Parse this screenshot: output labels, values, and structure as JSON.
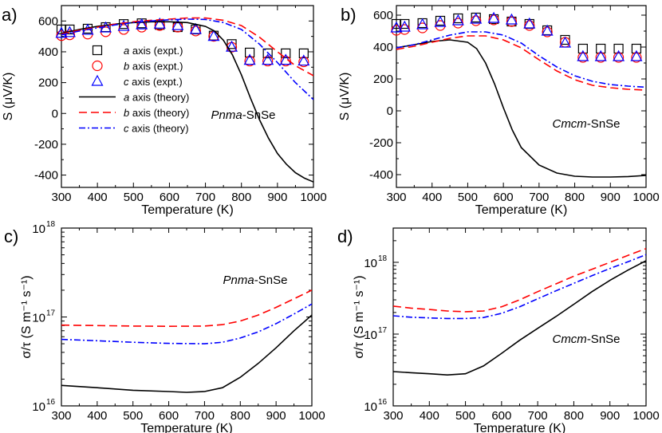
{
  "chart_data": [
    {
      "id": "a",
      "panel_label": "a)",
      "type": "line",
      "title": "",
      "xlabel": "Temperature (K)",
      "ylabel": "S (μV/K)",
      "xlim": [
        300,
        1000
      ],
      "ylim": [
        -480,
        700
      ],
      "xticks": [
        300,
        400,
        500,
        600,
        700,
        800,
        900,
        1000
      ],
      "yticks": [
        -400,
        -200,
        0,
        200,
        400,
        600
      ],
      "annotation": {
        "italic": "Pnma",
        "rest": "-SnSe"
      },
      "legend_position": "center-left",
      "series": [
        {
          "name": "a axis (expt.)",
          "axis": "a",
          "suffix": " axis (expt.)",
          "kind": "marker",
          "marker": "square",
          "color": "#000000",
          "x": [
            300,
            323,
            373,
            423,
            473,
            523,
            573,
            623,
            673,
            723,
            773,
            823,
            873,
            923,
            973
          ],
          "y": [
            545,
            545,
            550,
            560,
            580,
            585,
            575,
            560,
            545,
            505,
            450,
            395,
            390,
            390,
            390
          ]
        },
        {
          "name": "b axis (expt.)",
          "axis": "b",
          "suffix": " axis (expt.)",
          "kind": "marker",
          "marker": "circle",
          "color": "#ff0000",
          "x": [
            300,
            323,
            373,
            423,
            473,
            523,
            573,
            623,
            673,
            723,
            773,
            823,
            873,
            923,
            973
          ],
          "y": [
            505,
            510,
            515,
            530,
            545,
            560,
            570,
            560,
            535,
            500,
            430,
            340,
            340,
            340,
            335
          ]
        },
        {
          "name": "c axis (expt.)",
          "axis": "c",
          "suffix": " axis (expt.)",
          "kind": "marker",
          "marker": "triangle",
          "color": "#0000ff",
          "x": [
            300,
            323,
            373,
            423,
            473,
            523,
            573,
            623,
            673,
            723,
            773,
            823,
            873,
            923,
            973
          ],
          "y": [
            520,
            525,
            540,
            555,
            565,
            575,
            580,
            570,
            545,
            500,
            430,
            345,
            345,
            345,
            340
          ]
        },
        {
          "name": "a axis (theory)",
          "axis": "a",
          "suffix": " axis (theory)",
          "kind": "line",
          "dash": "solid",
          "color": "#000000",
          "x": [
            300,
            350,
            400,
            450,
            500,
            550,
            600,
            650,
            700,
            725,
            750,
            775,
            800,
            825,
            850,
            875,
            900,
            925,
            950,
            975,
            1000
          ],
          "y": [
            520,
            545,
            565,
            580,
            590,
            595,
            595,
            590,
            565,
            535,
            475,
            380,
            250,
            100,
            -40,
            -160,
            -260,
            -330,
            -385,
            -420,
            -445
          ]
        },
        {
          "name": "b axis (theory)",
          "axis": "b",
          "suffix": " axis (theory)",
          "kind": "line",
          "dash": "dashed",
          "color": "#ff0000",
          "x": [
            300,
            350,
            400,
            450,
            500,
            550,
            600,
            650,
            700,
            750,
            800,
            850,
            900,
            950,
            1000
          ],
          "y": [
            515,
            540,
            560,
            580,
            595,
            605,
            612,
            620,
            620,
            605,
            570,
            495,
            400,
            310,
            245
          ]
        },
        {
          "name": "c axis (theory)",
          "axis": "c",
          "suffix": " axis (theory)",
          "kind": "line",
          "dash": "dashdot",
          "color": "#0000ff",
          "x": [
            300,
            350,
            400,
            450,
            500,
            550,
            600,
            650,
            700,
            750,
            800,
            850,
            900,
            950,
            1000
          ],
          "y": [
            510,
            535,
            555,
            575,
            590,
            600,
            608,
            612,
            610,
            590,
            545,
            450,
            330,
            200,
            90
          ]
        }
      ]
    },
    {
      "id": "b",
      "panel_label": "b)",
      "type": "line",
      "title": "",
      "xlabel": "Temperature (K)",
      "ylabel": "S (μV/K)",
      "xlim": [
        300,
        1000
      ],
      "ylim": [
        -480,
        660
      ],
      "xticks": [
        300,
        400,
        500,
        600,
        700,
        800,
        900,
        1000
      ],
      "yticks": [
        -400,
        -200,
        0,
        200,
        400,
        600
      ],
      "annotation": {
        "italic": "Cmcm",
        "rest": "-SnSe"
      },
      "series": [
        {
          "name": "a axis (expt.)",
          "kind": "marker",
          "marker": "square",
          "color": "#000000",
          "x": [
            300,
            323,
            373,
            423,
            473,
            523,
            573,
            623,
            673,
            723,
            773,
            823,
            873,
            923,
            973
          ],
          "y": [
            545,
            545,
            550,
            565,
            580,
            585,
            575,
            560,
            545,
            505,
            445,
            390,
            390,
            390,
            390
          ]
        },
        {
          "name": "b axis (expt.)",
          "kind": "marker",
          "marker": "circle",
          "color": "#ff0000",
          "x": [
            300,
            323,
            373,
            423,
            473,
            523,
            573,
            623,
            673,
            723,
            773,
            823,
            873,
            923,
            973
          ],
          "y": [
            505,
            510,
            520,
            535,
            550,
            565,
            570,
            560,
            535,
            495,
            430,
            335,
            335,
            335,
            335
          ]
        },
        {
          "name": "c axis (expt.)",
          "kind": "marker",
          "marker": "triangle",
          "color": "#0000ff",
          "x": [
            300,
            323,
            373,
            423,
            473,
            523,
            573,
            623,
            673,
            723,
            773,
            823,
            873,
            923,
            973
          ],
          "y": [
            520,
            525,
            540,
            555,
            565,
            575,
            580,
            570,
            545,
            500,
            425,
            340,
            340,
            340,
            340
          ]
        },
        {
          "name": "a axis (theory)",
          "kind": "line",
          "dash": "solid",
          "color": "#000000",
          "x": [
            300,
            350,
            400,
            450,
            500,
            525,
            550,
            575,
            600,
            625,
            650,
            700,
            750,
            800,
            850,
            900,
            950,
            1000
          ],
          "y": [
            395,
            415,
            435,
            445,
            430,
            390,
            300,
            170,
            20,
            -120,
            -230,
            -340,
            -390,
            -410,
            -415,
            -415,
            -412,
            -405
          ]
        },
        {
          "name": "b axis (theory)",
          "kind": "line",
          "dash": "dashed",
          "color": "#ff0000",
          "x": [
            300,
            350,
            400,
            450,
            500,
            550,
            600,
            650,
            700,
            750,
            800,
            850,
            900,
            950,
            1000
          ],
          "y": [
            385,
            405,
            430,
            455,
            470,
            470,
            445,
            395,
            320,
            250,
            195,
            160,
            145,
            135,
            130
          ]
        },
        {
          "name": "c axis (theory)",
          "kind": "line",
          "dash": "dashdot",
          "color": "#0000ff",
          "x": [
            300,
            350,
            400,
            450,
            500,
            550,
            600,
            650,
            700,
            750,
            800,
            850,
            900,
            950,
            1000
          ],
          "y": [
            395,
            415,
            445,
            475,
            495,
            495,
            475,
            425,
            345,
            275,
            220,
            185,
            165,
            155,
            148
          ]
        }
      ]
    },
    {
      "id": "c",
      "panel_label": "c)",
      "type": "line",
      "yscale": "log",
      "title": "",
      "xlabel": "Temperature (K)",
      "ylabel": "σ/τ (S m⁻¹ s⁻¹)",
      "xlim": [
        300,
        1000
      ],
      "ylim": [
        1e+16,
        1e+18
      ],
      "xticks": [
        300,
        400,
        500,
        600,
        700,
        800,
        900,
        1000
      ],
      "yticks_major": [
        {
          "value": 1e+16,
          "base": "10",
          "exp": "16"
        },
        {
          "value": 1e+17,
          "base": "10",
          "exp": "17"
        },
        {
          "value": 1e+18,
          "base": "10",
          "exp": "18"
        }
      ],
      "annotation": {
        "italic": "Pnma",
        "rest": "-SnSe"
      },
      "series": [
        {
          "name": "a axis (theory)",
          "kind": "line",
          "dash": "solid",
          "color": "#000000",
          "x": [
            300,
            400,
            500,
            600,
            650,
            700,
            750,
            800,
            850,
            900,
            950,
            1000
          ],
          "y": [
            1.7e+16,
            1.6e+16,
            1.5e+16,
            1.45e+16,
            1.42e+16,
            1.45e+16,
            1.6e+16,
            2.1e+16,
            3e+16,
            4.5e+16,
            7e+16,
            1.05e+17
          ]
        },
        {
          "name": "b axis (theory)",
          "kind": "line",
          "dash": "dashed",
          "color": "#ff0000",
          "x": [
            300,
            400,
            500,
            600,
            700,
            750,
            800,
            850,
            900,
            950,
            1000
          ],
          "y": [
            8.1e+16,
            8e+16,
            7.9e+16,
            7.85e+16,
            7.9e+16,
            8.2e+16,
            9e+16,
            1.05e+17,
            1.28e+17,
            1.6e+17,
            2e+17
          ]
        },
        {
          "name": "c axis (theory)",
          "kind": "line",
          "dash": "dashdot",
          "color": "#0000ff",
          "x": [
            300,
            400,
            500,
            600,
            700,
            750,
            800,
            850,
            900,
            950,
            1000
          ],
          "y": [
            5.6e+16,
            5.4e+16,
            5.2e+16,
            5.05e+16,
            5e+16,
            5.2e+16,
            5.8e+16,
            6.8e+16,
            8.4e+16,
            1.08e+17,
            1.4e+17
          ]
        }
      ]
    },
    {
      "id": "d",
      "panel_label": "d)",
      "type": "line",
      "yscale": "log",
      "title": "",
      "xlabel": "Temperature (K)",
      "ylabel": "σ/τ (S m⁻¹ s⁻¹)",
      "xlim": [
        300,
        1000
      ],
      "ylim": [
        1e+16,
        3e+18
      ],
      "xticks": [
        300,
        400,
        500,
        600,
        700,
        800,
        900,
        1000
      ],
      "yticks_major": [
        {
          "value": 1e+16,
          "base": "10",
          "exp": "16"
        },
        {
          "value": 1e+17,
          "base": "10",
          "exp": "17"
        },
        {
          "value": 1e+18,
          "base": "10",
          "exp": "18"
        }
      ],
      "annotation": {
        "italic": "Cmcm",
        "rest": "-SnSe"
      },
      "series": [
        {
          "name": "a axis (theory)",
          "kind": "line",
          "dash": "solid",
          "color": "#000000",
          "x": [
            300,
            350,
            400,
            450,
            500,
            550,
            600,
            650,
            700,
            750,
            800,
            850,
            900,
            950,
            1000
          ],
          "y": [
            3e+16,
            2.9e+16,
            2.8e+16,
            2.7e+16,
            2.8e+16,
            3.6e+16,
            5.4e+16,
            8.2e+16,
            1.2e+17,
            1.75e+17,
            2.6e+17,
            3.9e+17,
            5.6e+17,
            7.8e+17,
            1.05e+18
          ]
        },
        {
          "name": "b axis (theory)",
          "kind": "line",
          "dash": "dashed",
          "color": "#ff0000",
          "x": [
            300,
            350,
            400,
            450,
            500,
            550,
            600,
            650,
            700,
            750,
            800,
            850,
            900,
            950,
            1000
          ],
          "y": [
            2.45e+17,
            2.3e+17,
            2.2e+17,
            2.1e+17,
            2.05e+17,
            2.1e+17,
            2.4e+17,
            3e+17,
            3.9e+17,
            5e+17,
            6.4e+17,
            8e+17,
            1e+18,
            1.25e+18,
            1.55e+18
          ]
        },
        {
          "name": "c axis (theory)",
          "kind": "line",
          "dash": "dashdot",
          "color": "#0000ff",
          "x": [
            300,
            350,
            400,
            450,
            500,
            550,
            600,
            650,
            700,
            750,
            800,
            850,
            900,
            950,
            1000
          ],
          "y": [
            1.8e+17,
            1.72e+17,
            1.68e+17,
            1.65e+17,
            1.65e+17,
            1.7e+17,
            1.95e+17,
            2.4e+17,
            3.1e+17,
            4e+17,
            5.1e+17,
            6.5e+17,
            8.2e+17,
            1.02e+18,
            1.28e+18
          ]
        }
      ]
    }
  ]
}
